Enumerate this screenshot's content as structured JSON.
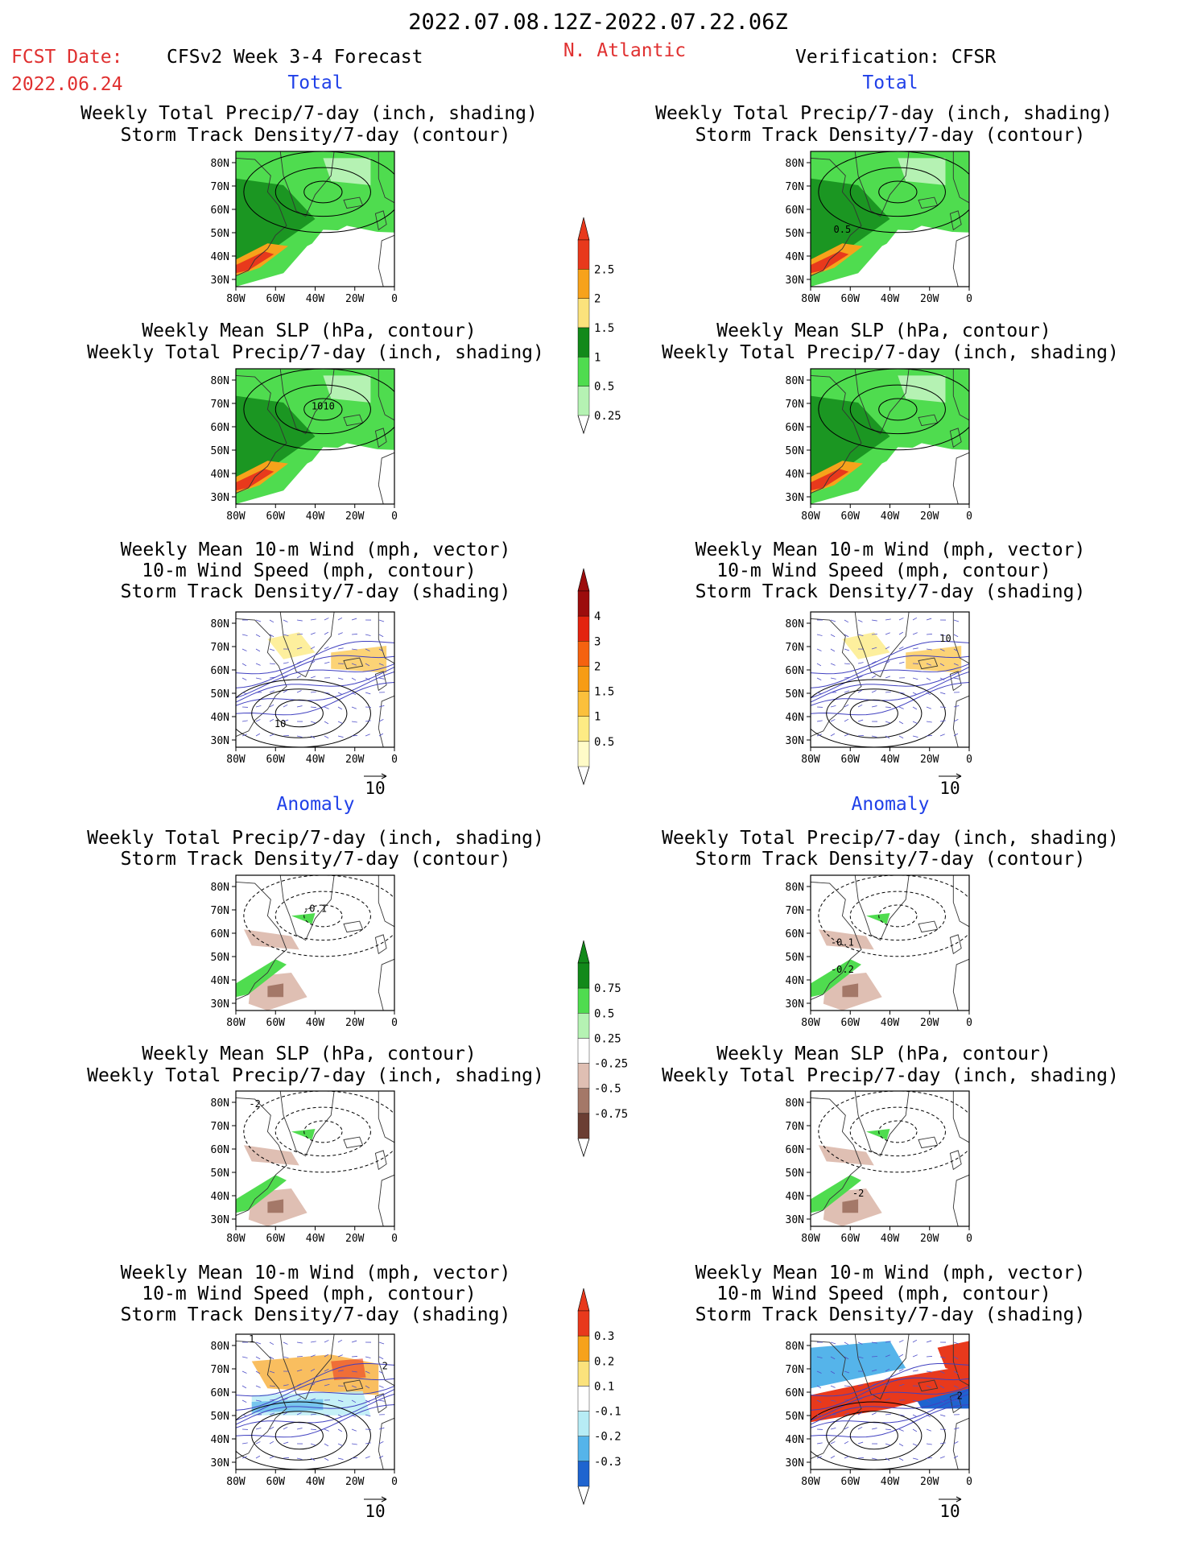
{
  "header": {
    "period": "2022.07.08.12Z-2022.07.22.06Z",
    "fcst_label": "FCST Date:",
    "fcst_date": "2022.06.24",
    "model": "CFSv2 Week 3-4 Forecast",
    "region": "N. Atlantic",
    "verification": "Verification: CFSR"
  },
  "sections": {
    "total": "Total",
    "anomaly": "Anomaly"
  },
  "titles": {
    "precip_storm": [
      "Weekly Total Precip/7-day (inch, shading)",
      "Storm Track Density/7-day (contour)"
    ],
    "slp_precip": [
      "Weekly Mean SLP (hPa, contour)",
      "Weekly Total Precip/7-day (inch, shading)"
    ],
    "wind_storm": [
      "Weekly Mean 10-m Wind (mph, vector)",
      "10-m Wind Speed (mph, contour)",
      "Storm Track Density/7-day (shading)"
    ]
  },
  "axes": {
    "lat_ticks": [
      "80N",
      "70N",
      "60N",
      "50N",
      "40N",
      "30N"
    ],
    "lon_ticks": [
      "80W",
      "60W",
      "40W",
      "20W",
      "0"
    ]
  },
  "vector_ref": "10",
  "contour_labels": {
    "fc_total_storm": "",
    "ver_total_storm": "0.5",
    "fc_total_slp": "1010",
    "fc_total_wind": "10",
    "ver_total_wind": "10",
    "fc_anom_storm": "-0.1",
    "ver_anom_storm_a": "-0.1",
    "ver_anom_storm_b": "-0.2",
    "fc_anom_slp": "-2",
    "ver_anom_slp": "-2",
    "fc_anom_wind_a": "1",
    "fc_anom_wind_b": "2",
    "ver_anom_wind": "2"
  },
  "colorbars": {
    "total_precip": {
      "labels": [
        "2.5",
        "2",
        "1.5",
        "1",
        "0.5",
        "0.25"
      ],
      "colors": [
        "#e8391c",
        "#f7a21b",
        "#fbe27c",
        "#12891a",
        "#4fdc4f",
        "#b5f2b3"
      ]
    },
    "total_storm": {
      "labels": [
        "4",
        "3",
        "2",
        "1.5",
        "1",
        "0.5"
      ],
      "colors": [
        "#9c0d0d",
        "#e3240f",
        "#f5620f",
        "#f79c14",
        "#fbc03c",
        "#fdeb84",
        "#fffbc8"
      ]
    },
    "anom_precip": {
      "labels": [
        "0.75",
        "0.5",
        "0.25",
        "-0.25",
        "-0.5",
        "-0.75"
      ],
      "colors": [
        "#12891a",
        "#4fdc4f",
        "#b5f2b3",
        "#ffffff",
        "#dfbfb3",
        "#a47868",
        "#6b3e33"
      ]
    },
    "anom_storm": {
      "labels": [
        "0.3",
        "0.2",
        "0.1",
        "-0.1",
        "-0.2",
        "-0.3"
      ],
      "colors": [
        "#e8391c",
        "#f7a21b",
        "#fbe27c",
        "#ffffff",
        "#b7ecf5",
        "#55b4ea",
        "#1f64cf"
      ]
    }
  }
}
